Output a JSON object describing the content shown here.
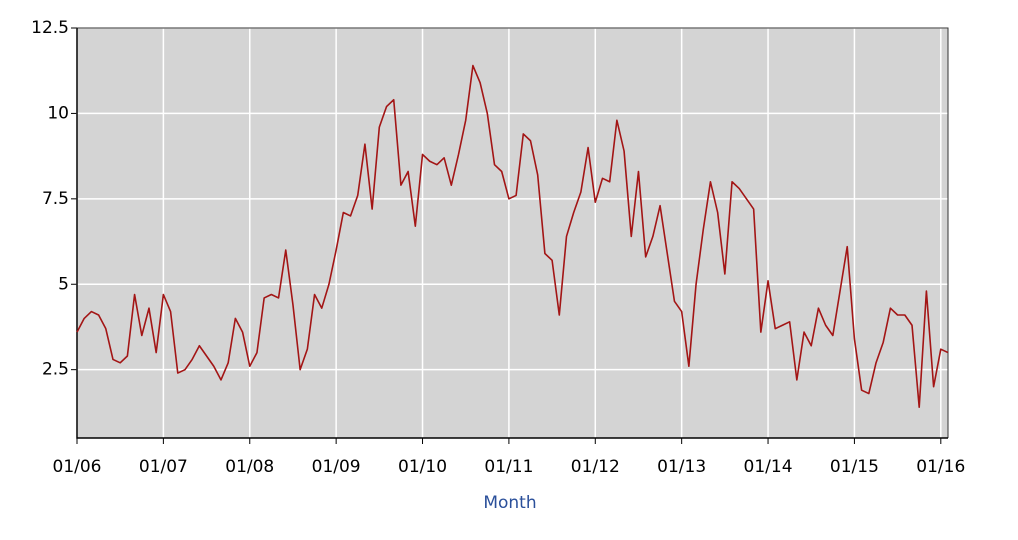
{
  "chart_data": {
    "type": "line",
    "x": [
      "2006-01",
      "2006-02",
      "2006-03",
      "2006-04",
      "2006-05",
      "2006-06",
      "2006-07",
      "2006-08",
      "2006-09",
      "2006-10",
      "2006-11",
      "2006-12",
      "2007-01",
      "2007-02",
      "2007-03",
      "2007-04",
      "2007-05",
      "2007-06",
      "2007-07",
      "2007-08",
      "2007-09",
      "2007-10",
      "2007-11",
      "2007-12",
      "2008-01",
      "2008-02",
      "2008-03",
      "2008-04",
      "2008-05",
      "2008-06",
      "2008-07",
      "2008-08",
      "2008-09",
      "2008-10",
      "2008-11",
      "2008-12",
      "2009-01",
      "2009-02",
      "2009-03",
      "2009-04",
      "2009-05",
      "2009-06",
      "2009-07",
      "2009-08",
      "2009-09",
      "2009-10",
      "2009-11",
      "2009-12",
      "2010-01",
      "2010-02",
      "2010-03",
      "2010-04",
      "2010-05",
      "2010-06",
      "2010-07",
      "2010-08",
      "2010-09",
      "2010-10",
      "2010-11",
      "2010-12",
      "2011-01",
      "2011-02",
      "2011-03",
      "2011-04",
      "2011-05",
      "2011-06",
      "2011-07",
      "2011-08",
      "2011-09",
      "2011-10",
      "2011-11",
      "2011-12",
      "2012-01",
      "2012-02",
      "2012-03",
      "2012-04",
      "2012-05",
      "2012-06",
      "2012-07",
      "2012-08",
      "2012-09",
      "2012-10",
      "2012-11",
      "2012-12",
      "2013-01",
      "2013-02",
      "2013-03",
      "2013-04",
      "2013-05",
      "2013-06",
      "2013-07",
      "2013-08",
      "2013-09",
      "2013-10",
      "2013-11",
      "2013-12",
      "2014-01",
      "2014-02",
      "2014-03",
      "2014-04",
      "2014-05",
      "2014-06",
      "2014-07",
      "2014-08",
      "2014-09",
      "2014-10",
      "2014-11",
      "2014-12",
      "2015-01",
      "2015-02",
      "2015-03",
      "2015-04",
      "2015-05",
      "2015-06",
      "2015-07",
      "2015-08",
      "2015-09",
      "2015-10",
      "2015-11",
      "2015-12",
      "2016-01",
      "2016-02"
    ],
    "series": [
      {
        "color": "#a31515",
        "values": [
          3.6,
          4.0,
          4.2,
          4.1,
          3.7,
          2.8,
          2.7,
          2.9,
          4.7,
          3.5,
          4.3,
          3.0,
          4.7,
          4.2,
          2.4,
          2.5,
          2.8,
          3.2,
          2.9,
          2.6,
          2.2,
          2.7,
          4.0,
          3.6,
          2.6,
          3.0,
          4.6,
          4.7,
          4.6,
          6.0,
          4.4,
          2.5,
          3.1,
          4.7,
          4.3,
          5.0,
          6.0,
          7.1,
          7.0,
          7.6,
          9.1,
          7.2,
          9.6,
          10.2,
          10.4,
          7.9,
          8.3,
          6.7,
          8.8,
          8.6,
          8.5,
          8.7,
          7.9,
          8.8,
          9.8,
          11.4,
          10.9,
          10.0,
          8.5,
          8.3,
          7.5,
          7.6,
          9.4,
          9.2,
          8.2,
          5.9,
          5.7,
          4.1,
          6.4,
          7.1,
          7.7,
          9.0,
          7.4,
          8.1,
          8.0,
          9.8,
          8.9,
          6.4,
          8.3,
          5.8,
          6.4,
          7.3,
          5.9,
          4.5,
          4.2,
          2.6,
          5.0,
          6.6,
          8.0,
          7.1,
          5.3,
          8.0,
          7.8,
          7.5,
          7.2,
          3.6,
          5.1,
          3.7,
          3.8,
          3.9,
          2.2,
          3.6,
          3.2,
          4.3,
          3.8,
          3.5,
          4.8,
          6.1,
          3.4,
          1.9,
          1.8,
          2.7,
          3.3,
          4.3,
          4.1,
          4.1,
          3.8,
          1.4,
          4.8,
          2.0,
          3.1,
          3.0
        ]
      }
    ],
    "xlim": [
      "2006-01",
      "2016-02"
    ],
    "xticks": [
      {
        "value": "2006-01",
        "label": "01/06"
      },
      {
        "value": "2007-01",
        "label": "01/07"
      },
      {
        "value": "2008-01",
        "label": "01/08"
      },
      {
        "value": "2009-01",
        "label": "01/09"
      },
      {
        "value": "2010-01",
        "label": "01/10"
      },
      {
        "value": "2011-01",
        "label": "01/11"
      },
      {
        "value": "2012-01",
        "label": "01/12"
      },
      {
        "value": "2013-01",
        "label": "01/13"
      },
      {
        "value": "2014-01",
        "label": "01/14"
      },
      {
        "value": "2015-01",
        "label": "01/15"
      },
      {
        "value": "2016-01",
        "label": "01/16"
      }
    ],
    "ylim": [
      0.5,
      12.5
    ],
    "yticks": [
      2.5,
      5,
      7.5,
      10,
      12.5
    ],
    "x_label": "Month",
    "grid": true,
    "plot_background": "#d4d4d4"
  }
}
